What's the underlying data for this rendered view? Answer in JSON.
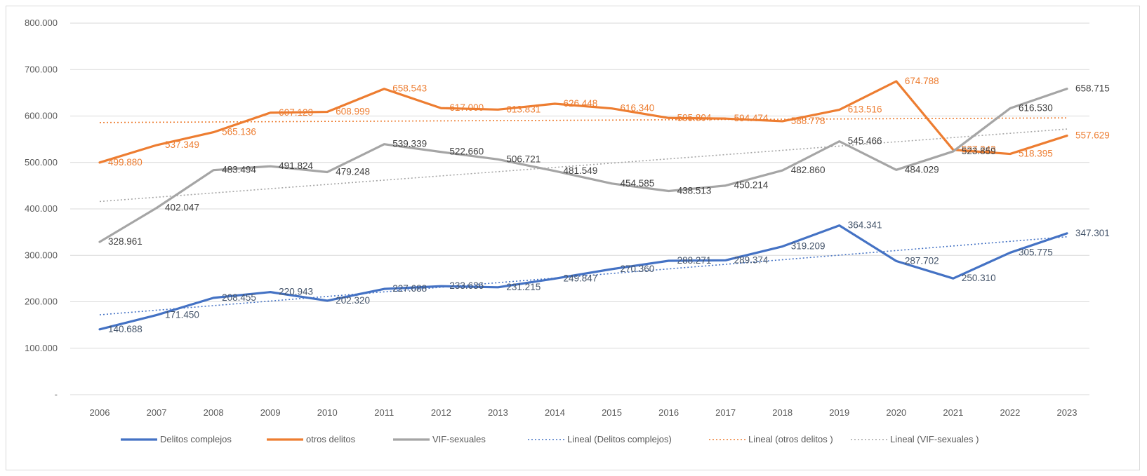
{
  "chart_data": {
    "type": "line",
    "title": "",
    "xlabel": "",
    "ylabel": "",
    "categories": [
      "2006",
      "2007",
      "2008",
      "2009",
      "2010",
      "2011",
      "2012",
      "2013",
      "2014",
      "2015",
      "2016",
      "2017",
      "2018",
      "2019",
      "2020",
      "2021",
      "2022",
      "2023"
    ],
    "ylim": [
      0,
      800000
    ],
    "y_ticks": [
      {
        "value": 0,
        "label": "-"
      },
      {
        "value": 100000,
        "label": "100.000"
      },
      {
        "value": 200000,
        "label": "200.000"
      },
      {
        "value": 300000,
        "label": "300.000"
      },
      {
        "value": 400000,
        "label": "400.000"
      },
      {
        "value": 500000,
        "label": "500.000"
      },
      {
        "value": 600000,
        "label": "600.000"
      },
      {
        "value": 700000,
        "label": "700.000"
      },
      {
        "value": 800000,
        "label": "800.000"
      }
    ],
    "grid": true,
    "legend_position": "bottom",
    "series": [
      {
        "name": "Delitos complejos",
        "color": "#4472C4",
        "values": [
          140688,
          171450,
          208455,
          220943,
          202320,
          227688,
          233636,
          231215,
          249847,
          270360,
          288271,
          289374,
          319209,
          364341,
          287702,
          250310,
          305775,
          347301
        ],
        "labels": [
          "140.688",
          "171.450",
          "208.455",
          "220.943",
          "202.320",
          "227.688",
          "233.636",
          "231.215",
          "249.847",
          "270.360",
          "288.271",
          "289.374",
          "319.209",
          "364.341",
          "287.702",
          "250.310",
          "305.775",
          "347.301"
        ]
      },
      {
        "name": "otros delitos",
        "color": "#ED7D31",
        "values": [
          499880,
          537349,
          565136,
          607123,
          608999,
          658543,
          617000,
          613831,
          626448,
          616340,
          595804,
          594474,
          588778,
          613516,
          674788,
          527243,
          518395,
          557629
        ],
        "labels": [
          "499.880",
          "537.349",
          "565.136",
          "607.123",
          "608.999",
          "658.543",
          "617.000",
          "613.831",
          "626.448",
          "616.340",
          "595.804",
          "594.474",
          "588.778",
          "613.516",
          "674.788",
          "527.243",
          "518.395",
          "557.629"
        ]
      },
      {
        "name": "VIF-sexuales",
        "color": "#A5A5A5",
        "values": [
          328961,
          402047,
          483494,
          491824,
          479248,
          539339,
          522660,
          506721,
          481549,
          454585,
          438513,
          450214,
          482860,
          545466,
          484029,
          523859,
          616530,
          658715
        ],
        "labels": [
          "328.961",
          "402.047",
          "483.494",
          "491.824",
          "479.248",
          "539.339",
          "522.660",
          "506.721",
          "481.549",
          "454.585",
          "438.513",
          "450.214",
          "482.860",
          "545.466",
          "484.029",
          "523.859",
          "616.530",
          "658.715"
        ]
      }
    ],
    "trendlines": [
      {
        "name": "Lineal (Delitos complejos)",
        "of": "Delitos complejos",
        "color": "#4472C4",
        "start": 172000,
        "end": 340000
      },
      {
        "name": "Lineal (otros delitos )",
        "of": "otros delitos",
        "color": "#ED7D31",
        "start": 586000,
        "end": 596000
      },
      {
        "name": "Lineal (VIF-sexuales )",
        "of": "VIF-sexuales",
        "color": "#A5A5A5",
        "start": 416000,
        "end": 572000
      }
    ]
  }
}
